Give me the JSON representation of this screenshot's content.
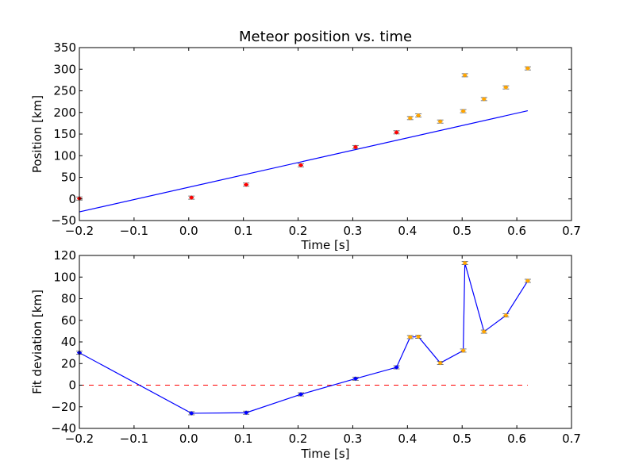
{
  "chart_data": [
    {
      "type": "scatter",
      "title": "Meteor position vs. time",
      "xlabel": "Time [s]",
      "ylabel": "Position [km]",
      "xlim": [
        -0.2,
        0.7
      ],
      "ylim": [
        -50,
        350
      ],
      "xticks": [
        "−0.2",
        "−0.1",
        "0.0",
        "0.1",
        "0.2",
        "0.3",
        "0.4",
        "0.5",
        "0.6",
        "0.7"
      ],
      "yticks": [
        "−50",
        "0",
        "50",
        "100",
        "150",
        "200",
        "250",
        "300",
        "350"
      ],
      "grid": false,
      "series": [
        {
          "color": "#ff0000",
          "points": [
            {
              "x": -0.2,
              "y": 1
            },
            {
              "x": 0.005,
              "y": 3
            },
            {
              "x": 0.105,
              "y": 33
            },
            {
              "x": 0.205,
              "y": 78
            },
            {
              "x": 0.305,
              "y": 120
            },
            {
              "x": 0.38,
              "y": 154
            }
          ]
        },
        {
          "color": "#ffa500",
          "points": [
            {
              "x": 0.405,
              "y": 187
            },
            {
              "x": 0.42,
              "y": 193
            },
            {
              "x": 0.46,
              "y": 179
            },
            {
              "x": 0.502,
              "y": 203
            },
            {
              "x": 0.505,
              "y": 286
            },
            {
              "x": 0.54,
              "y": 231
            },
            {
              "x": 0.58,
              "y": 258
            },
            {
              "x": 0.62,
              "y": 302
            }
          ]
        }
      ],
      "fit_line": {
        "color": "#0000ff",
        "points": [
          {
            "x": -0.2,
            "y": -30
          },
          {
            "x": 0.62,
            "y": 204
          }
        ]
      }
    },
    {
      "type": "line",
      "xlabel": "Time [s]",
      "ylabel": "Fit deviation [km]",
      "xlim": [
        -0.2,
        0.7
      ],
      "ylim": [
        -40,
        120
      ],
      "xticks": [
        "−0.2",
        "−0.1",
        "0.0",
        "0.1",
        "0.2",
        "0.3",
        "0.4",
        "0.5",
        "0.6",
        "0.7"
      ],
      "yticks": [
        "−40",
        "−20",
        "0",
        "20",
        "40",
        "60",
        "80",
        "100",
        "120"
      ],
      "grid": false,
      "series": [
        {
          "color": "#0000ff",
          "points": [
            {
              "x": -0.2,
              "y": 30,
              "marker": "#0000ff"
            },
            {
              "x": 0.005,
              "y": -26,
              "marker": "#0000ff"
            },
            {
              "x": 0.105,
              "y": -25.5,
              "marker": "#0000ff"
            },
            {
              "x": 0.205,
              "y": -8.5,
              "marker": "#0000ff"
            },
            {
              "x": 0.305,
              "y": 6,
              "marker": "#0000ff"
            },
            {
              "x": 0.38,
              "y": 16.5,
              "marker": "#0000ff"
            },
            {
              "x": 0.405,
              "y": 44.5,
              "marker": "#ffa500"
            },
            {
              "x": 0.42,
              "y": 44.8,
              "marker": "#ffa500"
            },
            {
              "x": 0.46,
              "y": 20.5,
              "marker": "#ffa500"
            },
            {
              "x": 0.502,
              "y": 32,
              "marker": "#ffa500"
            },
            {
              "x": 0.505,
              "y": 113,
              "marker": "#ffa500"
            },
            {
              "x": 0.54,
              "y": 49.5,
              "marker": "#ffa500"
            },
            {
              "x": 0.58,
              "y": 64.5,
              "marker": "#ffa500"
            },
            {
              "x": 0.62,
              "y": 96.5,
              "marker": "#ffa500"
            }
          ]
        }
      ],
      "reference_line": {
        "y": 0,
        "color": "#ff0000",
        "style": "dashed",
        "x_range": [
          -0.2,
          0.62
        ]
      }
    }
  ]
}
